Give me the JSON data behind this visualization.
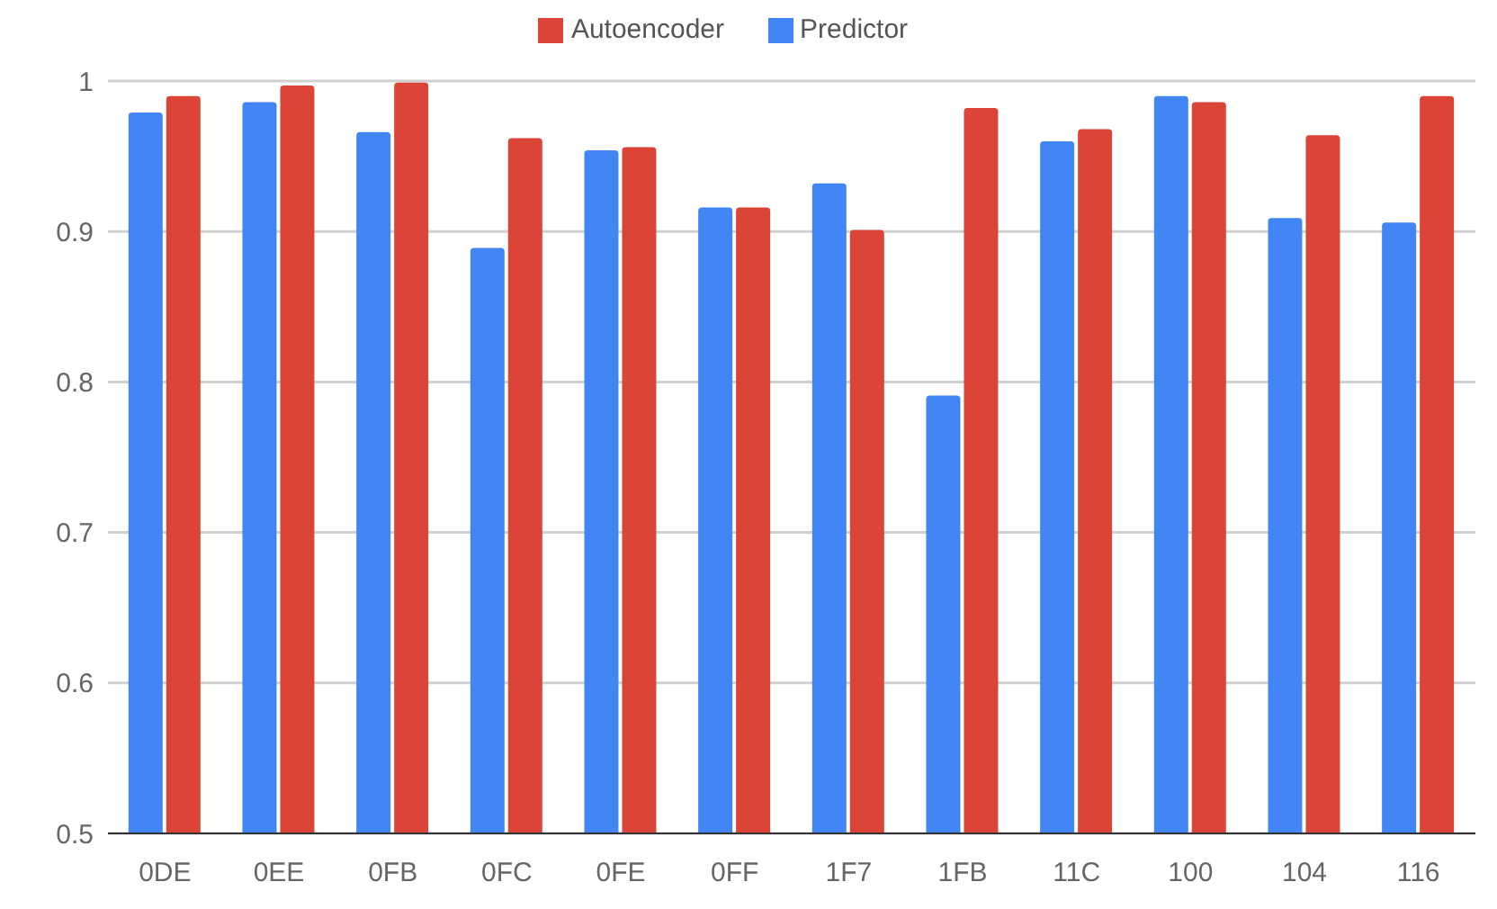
{
  "chart_data": {
    "type": "bar",
    "categories": [
      "0DE",
      "0EE",
      "0FB",
      "0FC",
      "0FE",
      "0FF",
      "1F7",
      "1FB",
      "11C",
      "100",
      "104",
      "116"
    ],
    "series": [
      {
        "name": "Predictor",
        "color": "#4285f4",
        "values": [
          0.979,
          0.986,
          0.966,
          0.889,
          0.954,
          0.916,
          0.932,
          0.791,
          0.96,
          0.99,
          0.909,
          0.906
        ]
      },
      {
        "name": "Autoencoder",
        "color": "#db4437",
        "values": [
          0.99,
          0.997,
          0.999,
          0.962,
          0.956,
          0.916,
          0.901,
          0.982,
          0.968,
          0.986,
          0.964,
          0.99
        ]
      }
    ],
    "ylim": [
      0.5,
      1
    ],
    "yticks": [
      0.5,
      0.6,
      0.7,
      0.8,
      0.9,
      1
    ],
    "grid": "y",
    "legend": "top"
  }
}
